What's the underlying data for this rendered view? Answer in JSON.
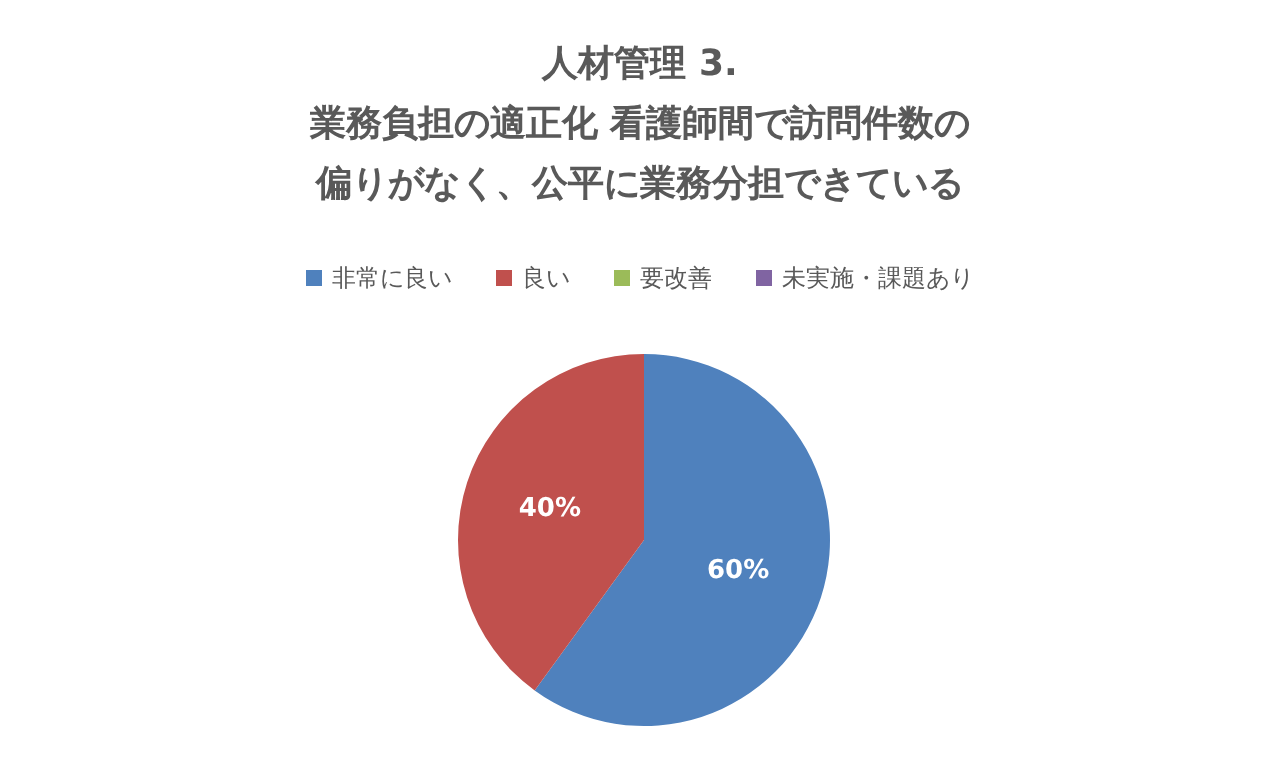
{
  "chart_data": {
    "type": "pie",
    "title": "人材管理 3.",
    "subtitle": "業務負担の適正化 看護師間で訪問件数の偏りがなく、公平に業務分担できている",
    "categories": [
      "非常に良い",
      "良い",
      "要改善",
      "未実施・課題あり"
    ],
    "values": [
      60,
      40,
      0,
      0
    ],
    "colors": [
      "#4f81bd",
      "#c0504d",
      "#9bbb59",
      "#8064a2"
    ],
    "value_labels": [
      "60%",
      "40%",
      null,
      null
    ],
    "legend": "top"
  }
}
